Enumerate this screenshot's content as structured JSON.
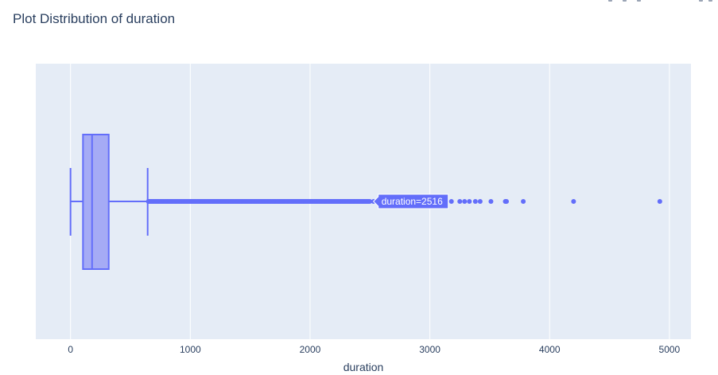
{
  "title": "Plot Distribution of duration",
  "chart_data": {
    "type": "box",
    "orientation": "horizontal",
    "title": "Plot Distribution of duration",
    "xlabel": "duration",
    "ylabel": "",
    "xlim": [
      -290,
      5180
    ],
    "xticks": [
      0,
      1000,
      2000,
      3000,
      4000,
      5000
    ],
    "xtick_labels": [
      "0",
      "1000",
      "2000",
      "3000",
      "4000",
      "5000"
    ],
    "grid": true,
    "box": {
      "min": 0,
      "q1": 104,
      "median": 180,
      "q3": 319,
      "upper_fence": 644
    },
    "outlier_range_dense": [
      650,
      2500
    ],
    "outliers": [
      2530,
      2560,
      2600,
      2680,
      2760,
      2860,
      2960,
      3080,
      3180,
      3250,
      3290,
      3330,
      3380,
      3420,
      3510,
      3630,
      3640,
      3780,
      4200,
      4920
    ],
    "hover_label": "duration=2516",
    "colors": {
      "box_line": "#636efa",
      "box_fill": "#a5abf5",
      "plot_bg": "#e5ecf6",
      "grid": "#ffffff",
      "text": "#2a3f5f"
    }
  }
}
